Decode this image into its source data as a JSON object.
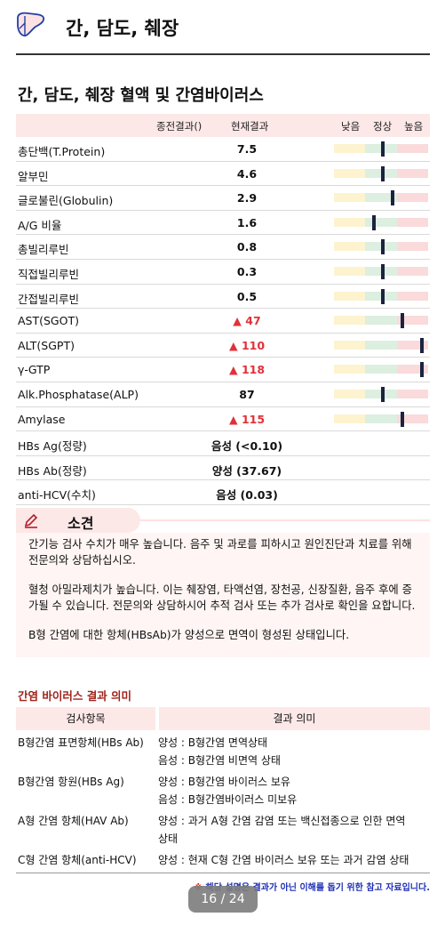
{
  "header": {
    "title": "간, 담도, 췌장"
  },
  "section_title": "간, 담도, 췌장 혈액 및 간염바이러스",
  "table": {
    "columns": {
      "previous": "종전결과()",
      "current": "현재결과",
      "low": "낮음",
      "normal": "정상",
      "high": "높음"
    },
    "rows": [
      {
        "name": "총단백(T.Protein)",
        "value": "7.5",
        "flag": "",
        "level": 0.52
      },
      {
        "name": "알부민",
        "value": "4.6",
        "flag": "",
        "level": 0.52
      },
      {
        "name": "글로불린(Globulin)",
        "value": "2.9",
        "flag": "",
        "level": 0.62
      },
      {
        "name": "A/G 비율",
        "value": "1.6",
        "flag": "",
        "level": 0.42
      },
      {
        "name": "총빌리루빈",
        "value": "0.8",
        "flag": "",
        "level": 0.52
      },
      {
        "name": "직접빌리루빈",
        "value": "0.3",
        "flag": "",
        "level": 0.52
      },
      {
        "name": "간접빌리루빈",
        "value": "0.5",
        "flag": "",
        "level": 0.52
      },
      {
        "name": "AST(SGOT)",
        "value": "47",
        "flag": "▲",
        "level": 0.73
      },
      {
        "name": "ALT(SGPT)",
        "value": "110",
        "flag": "▲",
        "level": 0.93
      },
      {
        "name": "γ-GTP",
        "value": "118",
        "flag": "▲",
        "level": 0.93
      },
      {
        "name": "Alk.Phosphatase(ALP)",
        "value": "87",
        "flag": "",
        "level": 0.52
      },
      {
        "name": "Amylase",
        "value": "115",
        "flag": "▲",
        "level": 0.73
      },
      {
        "name": "HBs Ag(정량)",
        "value": "음성 (<0.10)",
        "flag": "",
        "level": null
      },
      {
        "name": "HBs Ab(정량)",
        "value": "양성 (37.67)",
        "flag": "",
        "level": null
      },
      {
        "name": "anti-HCV(수치)",
        "value": "음성 (0.03)",
        "flag": "",
        "level": null
      }
    ]
  },
  "opinion": {
    "label": "소견",
    "paragraphs": [
      "간기능 검사 수치가 매우 높습니다. 음주 및 과로를 피하시고 원인진단과 치료를 위해 전문의와 상담하십시오.",
      "혈청 아밀라제치가 높습니다. 이는 췌장염, 타액선염, 장천공, 신장질환, 음주 후에 증가될 수 있습니다. 전문의와 상담하시어 추적 검사 또는 추가 검사로 확인을 요합니다.",
      "B형 간염에 대한 항체(HBsAb)가 양성으로 면역이 형성된 상태입니다."
    ]
  },
  "virus": {
    "title": "간염 바이러스 결과 의미",
    "col_item": "검사항목",
    "col_meaning": "결과 의미",
    "rows": [
      {
        "item": "B형간염 표면항체(HBs Ab)",
        "lines": [
          "양성 : B형간염 면역상태",
          "음성 : B형간염 비면역 상태"
        ]
      },
      {
        "item": "B형간염 항원(HBs Ag)",
        "lines": [
          "양성 : B형간염 바이러스 보유",
          "음성 : B형간염바이러스 미보유"
        ]
      },
      {
        "item": "A형 간염 항체(HAV Ab)",
        "lines": [
          "양성 : 과거 A형 간염 감염 또는 백신접종으로 인한 면역",
          "상태"
        ]
      },
      {
        "item": "C형 간염 항체(anti-HCV)",
        "lines": [
          "양성 : 현재 C형 간염 바이러스 보유 또는 과거 감염 상태"
        ]
      }
    ]
  },
  "footnote": {
    "star": "※",
    "text": "해당 설명은 결과가 아닌 이해를 돕기 위한 참고 자료입니다."
  },
  "pagination": {
    "label": "16 / 24"
  },
  "icons": {
    "header": "liver-icon",
    "opinion": "pencil-icon"
  },
  "colors": {
    "high_flag": "#e0323a",
    "header_bg": "#fde8e8",
    "virus_title": "#a0231a",
    "footnote": "#1e2fb5",
    "marker": "#1c2340"
  }
}
